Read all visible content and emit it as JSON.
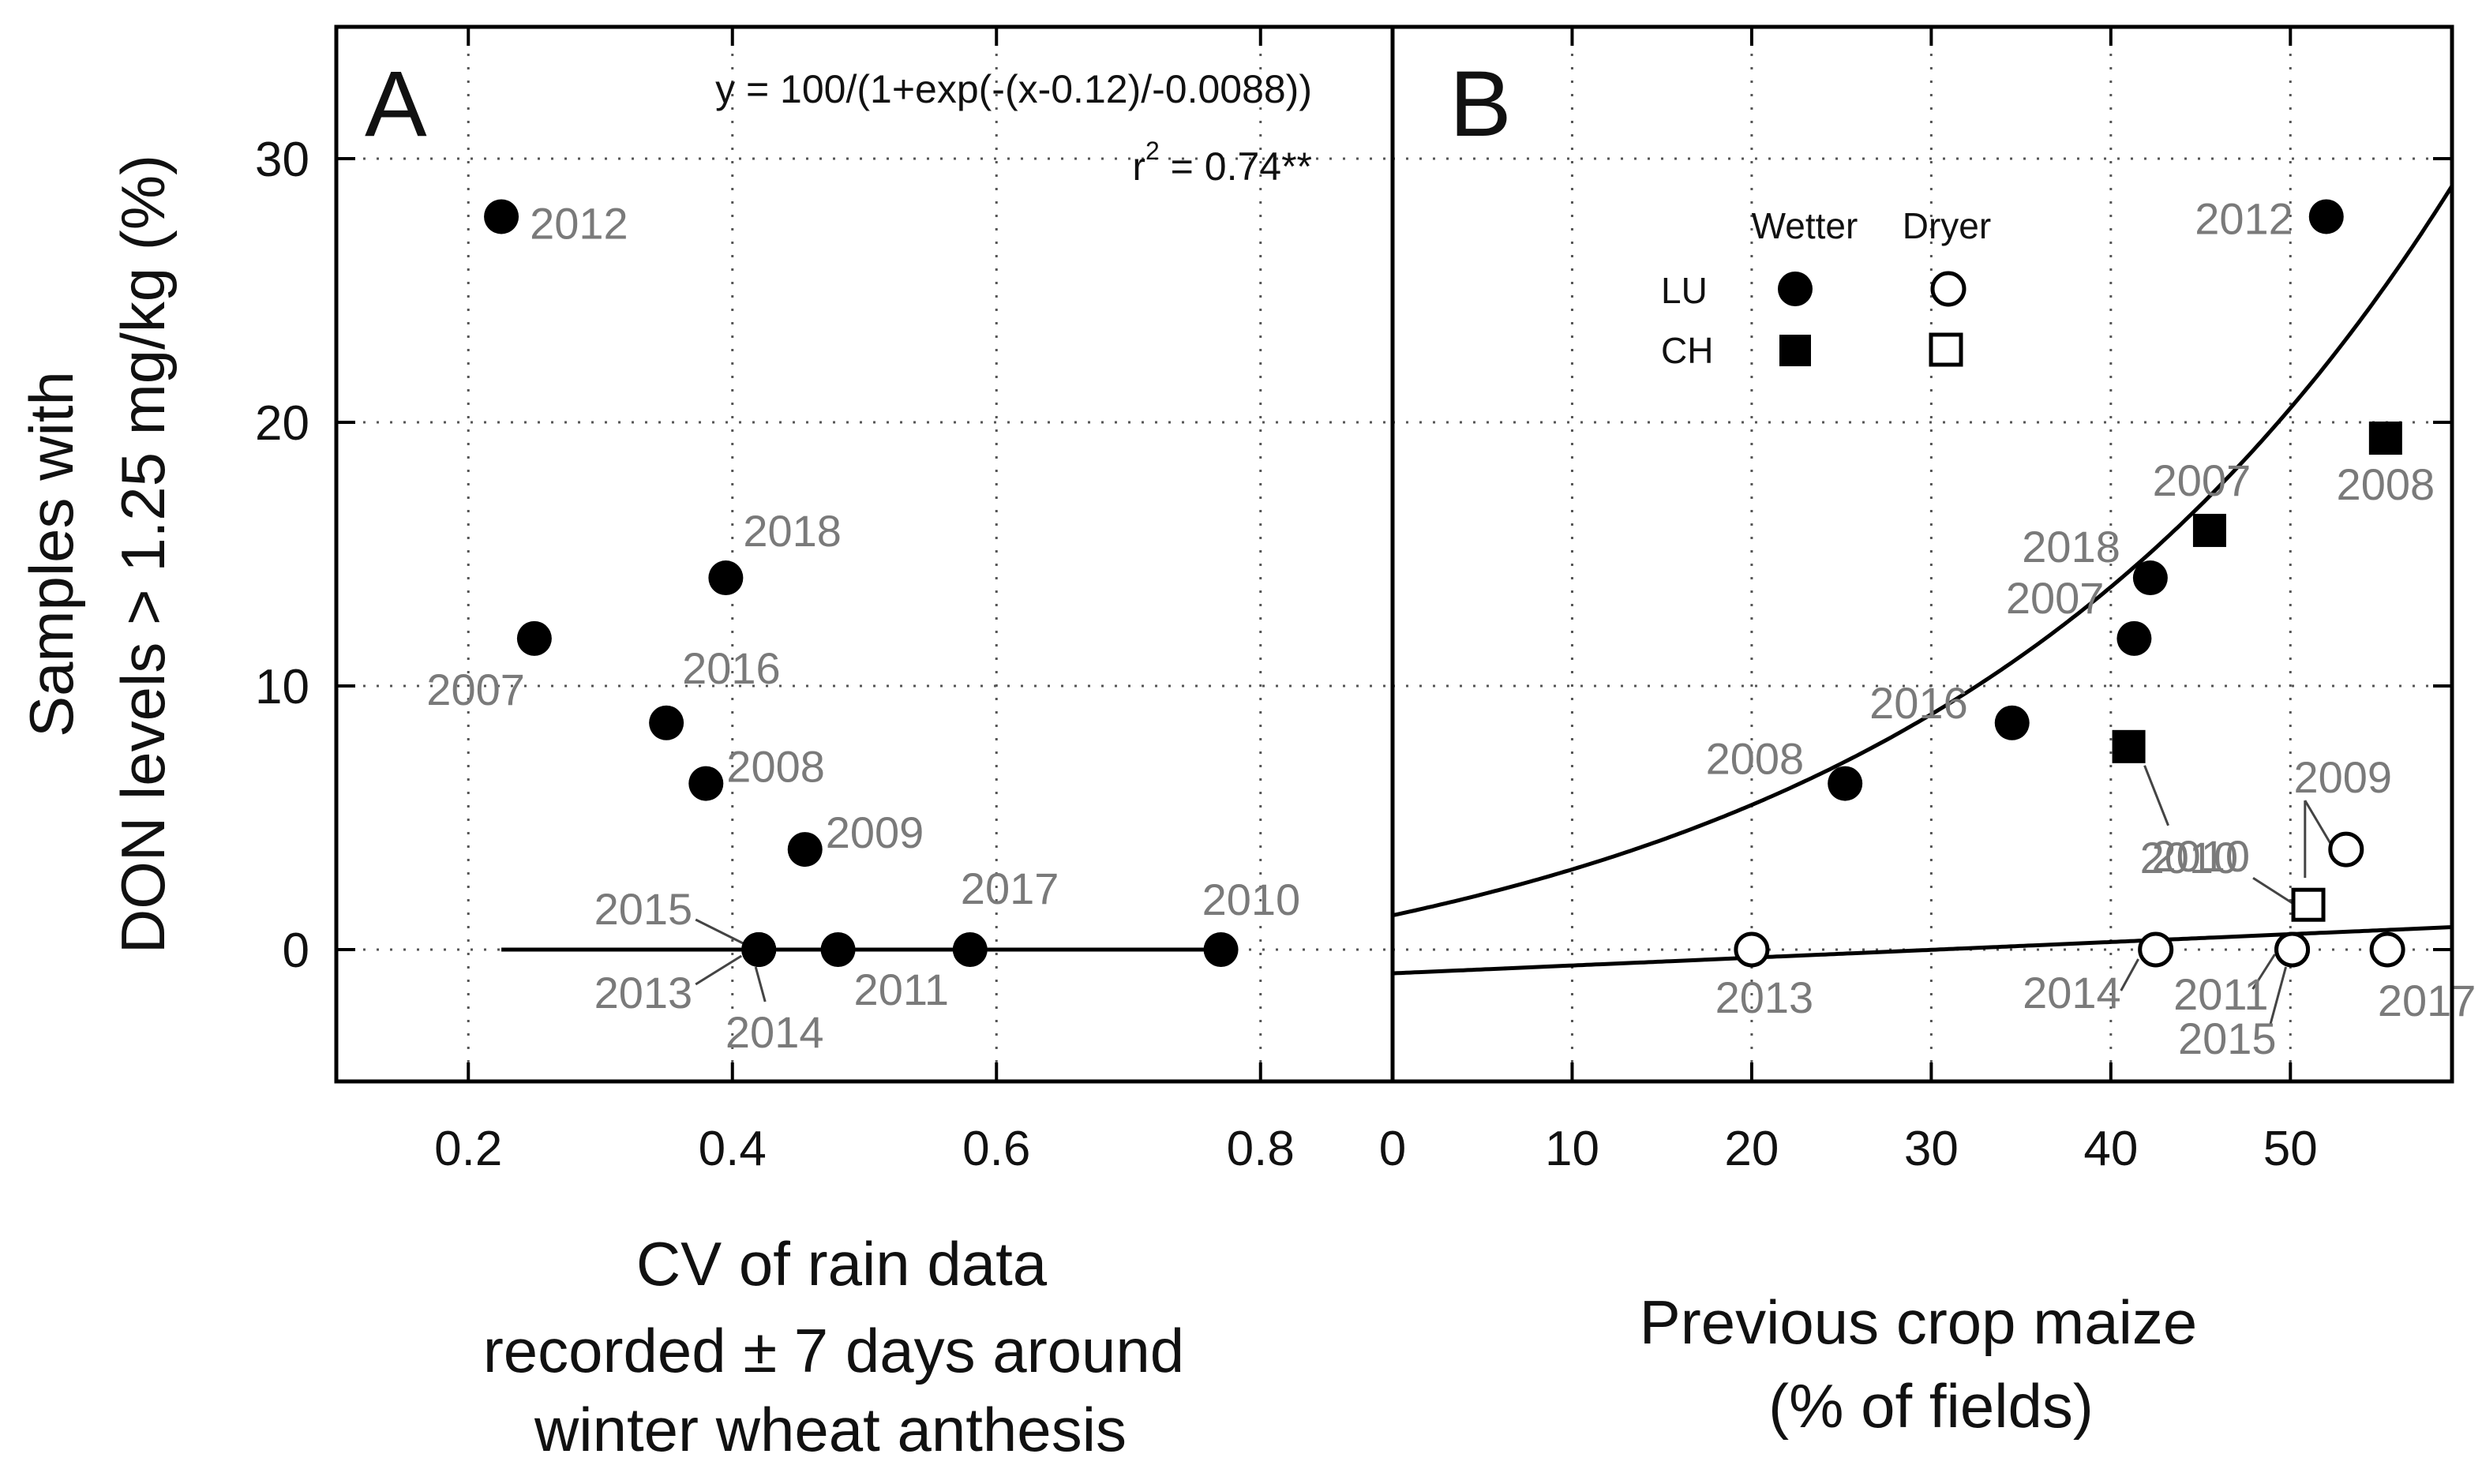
{
  "chart_data": [
    {
      "panel": "A",
      "type": "scatter",
      "xlabel": [
        "CV of rain data",
        "recorded ± 7 days around",
        "winter wheat anthesis"
      ],
      "ylabel": [
        "Samples with",
        "DON levels > 1.25 mg/kg (%)"
      ],
      "xlim": [
        0.1,
        0.9
      ],
      "ylim": [
        -5,
        35
      ],
      "xticks": [
        0.2,
        0.4,
        0.6,
        0.8
      ],
      "xtick_labels": [
        "0.2",
        "0.4",
        "0.6",
        "0.8"
      ],
      "yticks": [
        0,
        10,
        20,
        30
      ],
      "ytick_labels": [
        "0",
        "10",
        "20",
        "30"
      ],
      "grid": true,
      "equation": "y = 100/(1+exp(-(x-0.12)/-0.0088))",
      "r2_base": "r",
      "r2_sup": "2",
      "r2_rest": " = 0.74**",
      "fit": {
        "type": "logistic",
        "x0": 0.12,
        "scale": -0.0088,
        "asymptote": 100,
        "x_range": [
          0.225,
          0.77
        ]
      },
      "points": [
        {
          "year": "2012",
          "x": 0.225,
          "y": 27.8
        },
        {
          "year": "2007",
          "x": 0.25,
          "y": 11.8
        },
        {
          "year": "2016",
          "x": 0.35,
          "y": 8.6
        },
        {
          "year": "2018",
          "x": 0.395,
          "y": 14.1
        },
        {
          "year": "2008",
          "x": 0.38,
          "y": 6.3
        },
        {
          "year": "2009",
          "x": 0.455,
          "y": 3.8
        },
        {
          "year": "2015",
          "x": 0.42,
          "y": 0
        },
        {
          "year": "2013",
          "x": 0.42,
          "y": 0
        },
        {
          "year": "2014",
          "x": 0.42,
          "y": 0
        },
        {
          "year": "2011",
          "x": 0.48,
          "y": 0
        },
        {
          "year": "2017",
          "x": 0.58,
          "y": 0
        },
        {
          "year": "2010",
          "x": 0.77,
          "y": 0
        }
      ]
    },
    {
      "panel": "B",
      "type": "scatter",
      "xlabel": [
        "Previous crop maize",
        "(% of fields)"
      ],
      "xlim": [
        0,
        59
      ],
      "ylim": [
        -5,
        35
      ],
      "xticks": [
        0,
        10,
        20,
        30,
        40,
        50
      ],
      "xtick_labels": [
        "0",
        "10",
        "20",
        "30",
        "40",
        "50"
      ],
      "yticks": [
        0,
        10,
        20,
        30
      ],
      "grid": true,
      "legend": {
        "position": "upper-middle",
        "col_headers": [
          "Wetter",
          "Dryer"
        ],
        "rows": [
          "LU",
          "CH"
        ]
      },
      "fits": [
        {
          "name": "Wetter",
          "type": "exponential",
          "a": 4.3,
          "b": 0.034,
          "offset": -3.0,
          "x_range": [
            0,
            59
          ]
        },
        {
          "name": "Dryer",
          "type": "linear",
          "slope": 0.0297,
          "intercept": -0.9,
          "x_range": [
            0,
            59
          ]
        }
      ],
      "series": [
        {
          "name": "LU Wetter",
          "marker": "filled-circle",
          "points": [
            {
              "year": "2012",
              "x": 52.0,
              "y": 27.8
            },
            {
              "year": "2018",
              "x": 42.2,
              "y": 14.1
            },
            {
              "year": "2007",
              "x": 41.3,
              "y": 11.8
            },
            {
              "year": "2016",
              "x": 34.5,
              "y": 8.6
            },
            {
              "year": "2008",
              "x": 25.2,
              "y": 6.3
            }
          ]
        },
        {
          "name": "CH Wetter",
          "marker": "filled-square",
          "points": [
            {
              "year": "2008",
              "x": 55.3,
              "y": 19.4
            },
            {
              "year": "2007",
              "x": 45.5,
              "y": 15.9
            },
            {
              "year": "2010",
              "x": 41.0,
              "y": 7.7
            }
          ]
        },
        {
          "name": "LU Dryer",
          "marker": "open-circle",
          "points": [
            {
              "year": "2013",
              "x": 20.0,
              "y": 0
            },
            {
              "year": "2014",
              "x": 42.5,
              "y": 0
            },
            {
              "year": "2011",
              "x": 50.1,
              "y": 0
            },
            {
              "year": "2015",
              "x": 50.1,
              "y": 0
            },
            {
              "year": "2017",
              "x": 55.4,
              "y": 0
            },
            {
              "year": "2009",
              "x": 53.1,
              "y": 3.8
            }
          ]
        },
        {
          "name": "CH Dryer",
          "marker": "open-square",
          "points": [
            {
              "year": "2010",
              "x": 51.0,
              "y": 1.7
            }
          ]
        }
      ]
    }
  ]
}
